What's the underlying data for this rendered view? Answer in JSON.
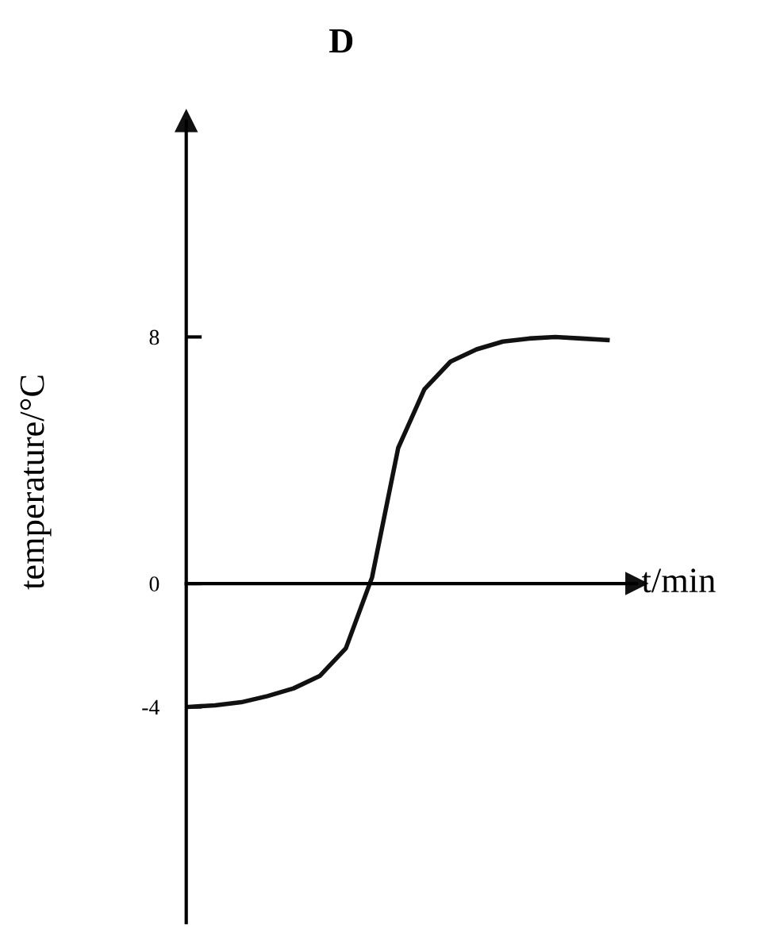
{
  "chart_data": {
    "type": "line",
    "title": "D",
    "xlabel": "t/min",
    "ylabel": "temperature/°C",
    "categories": [
      null,
      null,
      null,
      null,
      null,
      null,
      null,
      null,
      null,
      null,
      null,
      null,
      null,
      null,
      null,
      null,
      null
    ],
    "values": [
      -4,
      -3.95,
      -3.85,
      -3.65,
      -3.4,
      -3,
      -2.1,
      0.2,
      4.4,
      6.3,
      7.2,
      7.6,
      7.85,
      7.95,
      8,
      7.95,
      7.9
    ],
    "color": "#111111",
    "ylim": [
      -11,
      15
    ],
    "yticks": [
      8,
      0,
      {
        "value": -4,
        "label": "-4"
      }
    ],
    "legend": false,
    "marker": "none",
    "line_style": "solid"
  }
}
